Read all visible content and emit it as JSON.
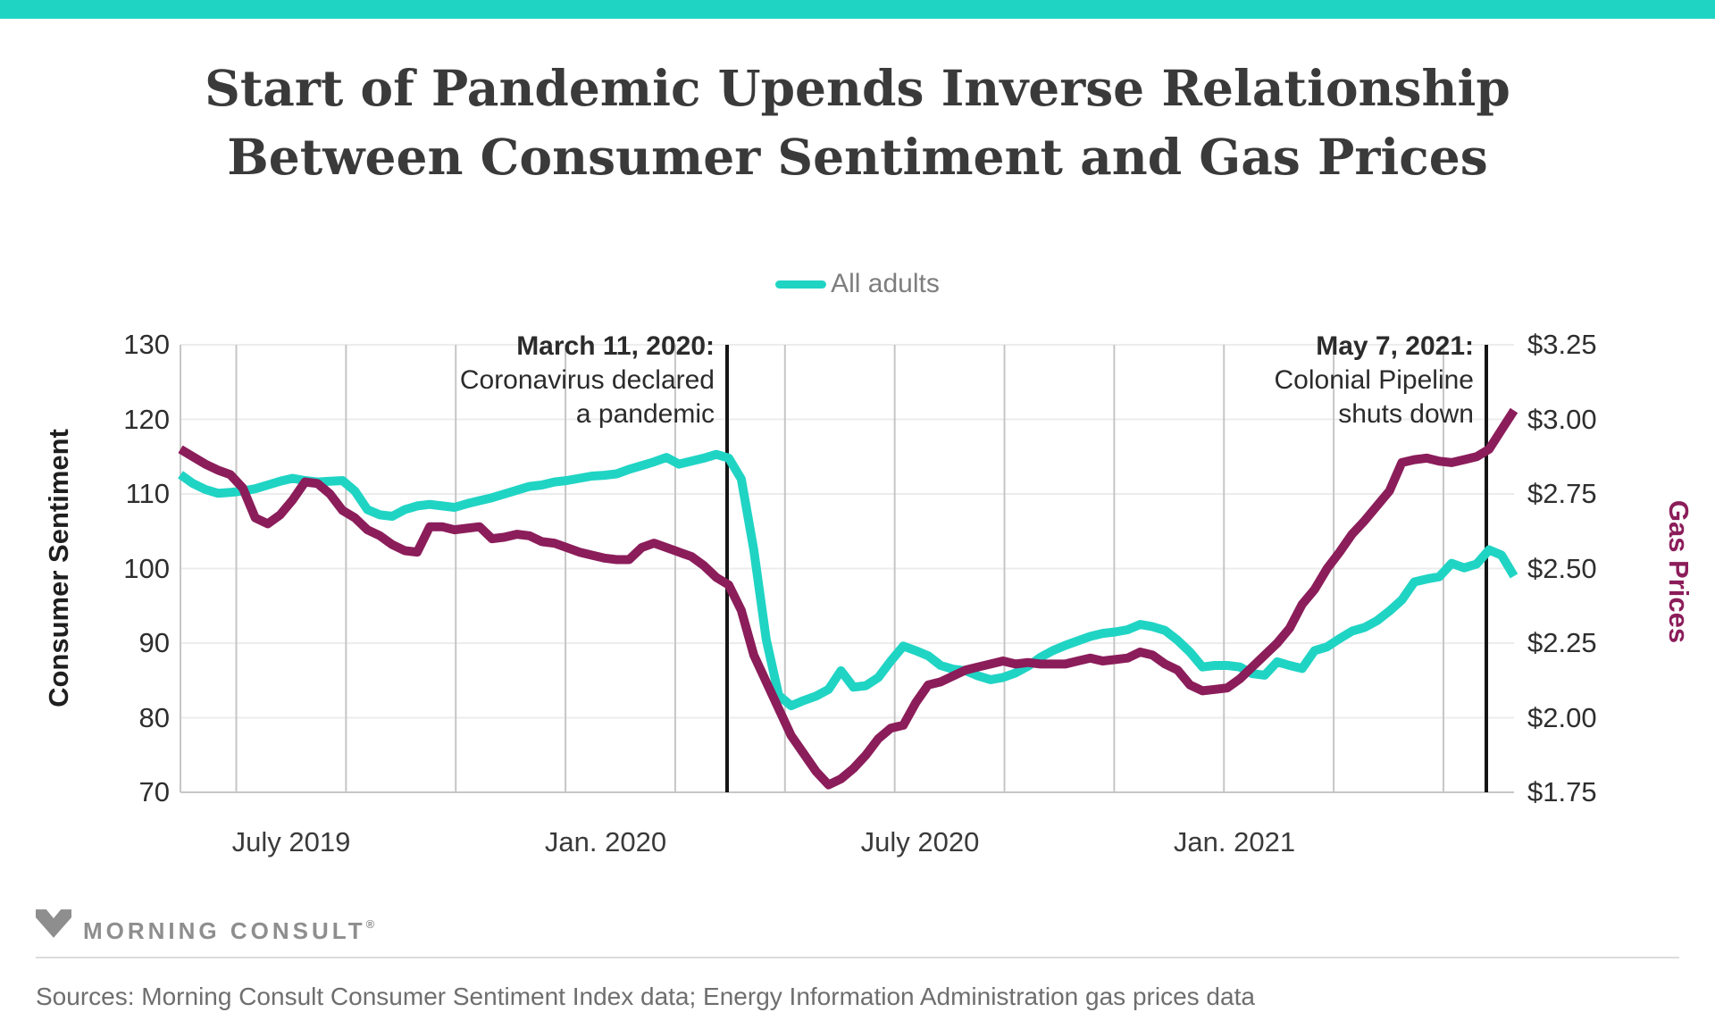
{
  "colors": {
    "teal": "#20D4C4",
    "maroon": "#8B1D5A",
    "title_text": "#3a3a3a",
    "grid_vertical": "#c6c6c6",
    "grid_horizontal": "#ececec",
    "axis_line": "#c6c6c6",
    "annotation_line": "#151515"
  },
  "header": {
    "title_line1": "Start of Pandemic Upends Inverse Relationship",
    "title_line2": "Between Consumer Sentiment and Gas Prices"
  },
  "legend": {
    "label": "All adults"
  },
  "chart_data": {
    "type": "line",
    "title": "Start of Pandemic Upends Inverse Relationship Between Consumer Sentiment and Gas Prices",
    "grid": "on",
    "legend_position": "top-center",
    "y_left": {
      "label": "Consumer Sentiment",
      "ticks": [
        "130",
        "120",
        "110",
        "100",
        "90",
        "80",
        "70"
      ],
      "range": [
        70,
        130
      ]
    },
    "y_right": {
      "label": "Gas Prices",
      "ticks": [
        "$3.25",
        "$3.00",
        "$2.75",
        "$2.50",
        "$2.25",
        "$2.00",
        "$1.75"
      ],
      "range": [
        1.75,
        3.25
      ]
    },
    "x_ticks": [
      "July 2019",
      "Jan. 2020",
      "July 2020",
      "Jan. 2021"
    ],
    "annotations": [
      {
        "title": "March 11, 2020:",
        "lines": [
          "Coronavirus declared",
          "a pandemic"
        ]
      },
      {
        "title": "May 7, 2021:",
        "lines": [
          "Colonial Pipeline",
          "shuts down"
        ]
      }
    ],
    "series": [
      {
        "name": "All adults",
        "axis": "left",
        "color": "#20D4C4",
        "values": [
          112.6,
          111.4,
          110.6,
          110.1,
          110.2,
          110.4,
          110.7,
          111.2,
          111.7,
          112.1,
          111.8,
          111.6,
          111.7,
          111.8,
          110.4,
          107.9,
          107.2,
          107.0,
          107.9,
          108.4,
          108.6,
          108.4,
          108.2,
          108.7,
          109.1,
          109.5,
          110.0,
          110.5,
          111.0,
          111.2,
          111.6,
          111.8,
          112.1,
          112.4,
          112.5,
          112.7,
          113.3,
          113.8,
          114.3,
          114.9,
          114.0,
          114.4,
          114.8,
          115.3,
          114.8,
          112.0,
          102.5,
          90.5,
          83.0,
          81.6,
          82.3,
          82.9,
          83.8,
          86.3,
          84.1,
          84.3,
          85.4,
          87.6,
          89.6,
          89.0,
          88.3,
          87.0,
          86.5,
          86.3,
          85.6,
          85.1,
          85.4,
          86.0,
          86.9,
          88.1,
          89.0,
          89.7,
          90.3,
          90.9,
          91.3,
          91.5,
          91.8,
          92.5,
          92.2,
          91.7,
          90.4,
          88.8,
          86.8,
          87.0,
          87.0,
          86.8,
          85.9,
          85.7,
          87.5,
          87.0,
          86.6,
          89.0,
          89.5,
          90.6,
          91.6,
          92.1,
          93.0,
          94.3,
          95.8,
          98.2,
          98.6,
          98.9,
          100.7,
          100.1,
          100.6,
          102.5,
          101.8,
          99.0
        ]
      },
      {
        "name": "Gas prices",
        "axis": "right",
        "color": "#8B1D5A",
        "values": [
          2.9,
          2.875,
          2.85,
          2.83,
          2.815,
          2.77,
          2.67,
          2.65,
          2.68,
          2.73,
          2.79,
          2.785,
          2.75,
          2.695,
          2.67,
          2.63,
          2.61,
          2.58,
          2.56,
          2.555,
          2.64,
          2.64,
          2.63,
          2.635,
          2.64,
          2.6,
          2.605,
          2.615,
          2.61,
          2.59,
          2.585,
          2.57,
          2.555,
          2.545,
          2.535,
          2.53,
          2.53,
          2.57,
          2.585,
          2.57,
          2.555,
          2.54,
          2.51,
          2.47,
          2.445,
          2.36,
          2.21,
          2.12,
          2.03,
          1.94,
          1.88,
          1.82,
          1.775,
          1.795,
          1.83,
          1.875,
          1.93,
          1.965,
          1.975,
          2.05,
          2.11,
          2.12,
          2.14,
          2.16,
          2.17,
          2.18,
          2.19,
          2.18,
          2.185,
          2.18,
          2.18,
          2.18,
          2.19,
          2.2,
          2.19,
          2.195,
          2.2,
          2.22,
          2.21,
          2.18,
          2.16,
          2.11,
          2.09,
          2.095,
          2.1,
          2.13,
          2.17,
          2.21,
          2.25,
          2.3,
          2.38,
          2.43,
          2.5,
          2.555,
          2.615,
          2.66,
          2.71,
          2.76,
          2.855,
          2.865,
          2.87,
          2.86,
          2.855,
          2.865,
          2.875,
          2.9,
          2.965,
          3.03
        ]
      }
    ]
  },
  "footer": {
    "logo_text": "MORNING CONSULT",
    "registered": "®",
    "sources": "Sources: Morning Consult Consumer Sentiment Index data; Energy Information Administration gas prices data"
  }
}
